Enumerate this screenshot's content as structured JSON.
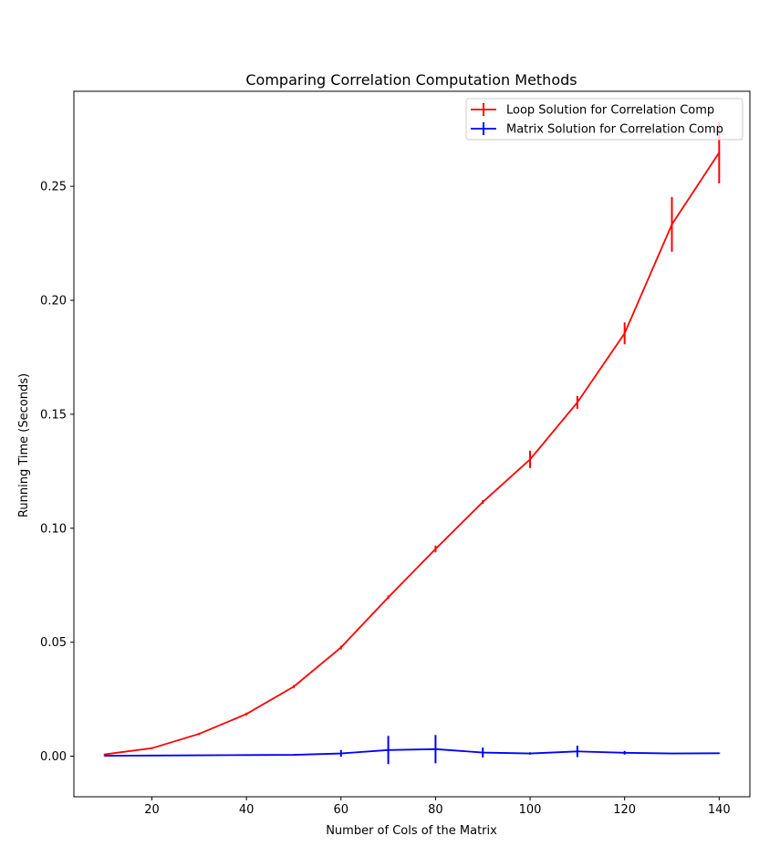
{
  "chart_data": {
    "type": "line",
    "title": "Comparing Correlation Computation Methods",
    "xlabel": "Number of Cols of the Matrix",
    "ylabel": "Running Time (Seconds)",
    "xlim": [
      3.5,
      146.5
    ],
    "ylim": [
      -0.0178,
      0.2917
    ],
    "xticks": [
      20,
      40,
      60,
      80,
      100,
      120,
      140
    ],
    "xtick_labels": [
      "20",
      "40",
      "60",
      "80",
      "100",
      "120",
      "140"
    ],
    "yticks": [
      0.0,
      0.05,
      0.1,
      0.15,
      0.2,
      0.25
    ],
    "ytick_labels": [
      "0.00",
      "0.05",
      "0.10",
      "0.15",
      "0.20",
      "0.25"
    ],
    "legend_placement": "top-right",
    "grid": false,
    "x": [
      10,
      20,
      30,
      40,
      50,
      60,
      70,
      80,
      90,
      100,
      110,
      120,
      130,
      140
    ],
    "series": [
      {
        "name": "Loop Solution for Correlation Comp",
        "color": "#ff0000",
        "values": [
          0.0008,
          0.0035,
          0.0098,
          0.0185,
          0.0305,
          0.0477,
          0.0697,
          0.0909,
          0.1115,
          0.1302,
          0.1552,
          0.1855,
          0.2333,
          0.2648
        ],
        "errors": [
          0.0002,
          0.0004,
          0.0005,
          0.0006,
          0.0007,
          0.0008,
          0.0008,
          0.0015,
          0.0008,
          0.0038,
          0.0028,
          0.0048,
          0.012,
          0.0135
        ]
      },
      {
        "name": "Matrix Solution for Correlation Comp",
        "color": "#0000ff",
        "values": [
          0.0002,
          0.0003,
          0.0004,
          0.0005,
          0.0006,
          0.0012,
          0.0027,
          0.0031,
          0.0016,
          0.0012,
          0.0021,
          0.0015,
          0.0012,
          0.0013
        ],
        "errors": [
          0.0,
          0.0,
          0.0,
          0.0,
          0.0,
          0.0015,
          0.0062,
          0.0062,
          0.0022,
          0.0005,
          0.0025,
          0.0008,
          0.0,
          0.0
        ]
      }
    ]
  }
}
